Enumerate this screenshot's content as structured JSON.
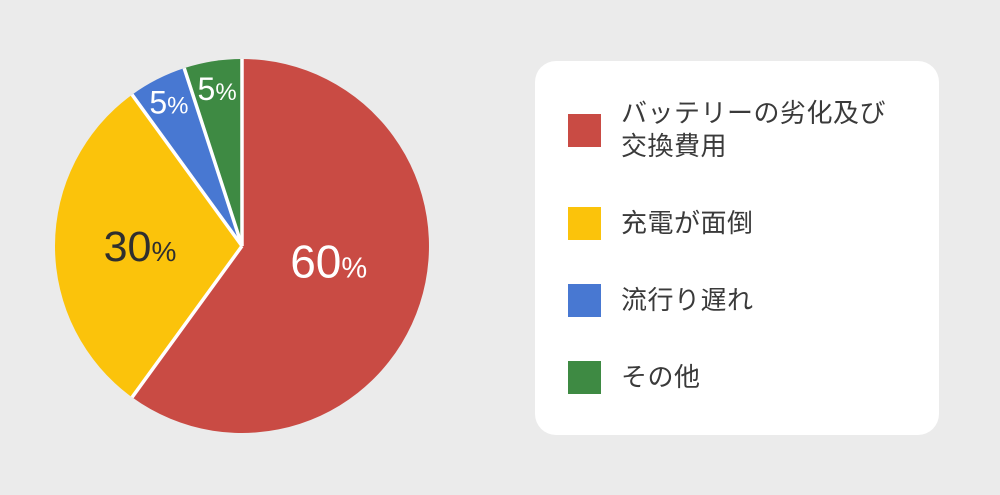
{
  "page": {
    "background_color": "#ebebeb",
    "card_color": "#ffffff"
  },
  "chart_data": {
    "type": "pie",
    "title": "",
    "unit": "%",
    "start_angle_deg": 0,
    "clockwise": true,
    "separator_color": "#ffffff",
    "legend_position": "right",
    "categories": [
      "バッテリーの劣化及び交換費用",
      "充電が面倒",
      "流行り遅れ",
      "その他"
    ],
    "values": [
      60,
      30,
      5,
      5
    ],
    "colors": [
      "#c94b44",
      "#fbc30b",
      "#4878d2",
      "#3e8a43"
    ],
    "slice_labels": [
      {
        "number": "60",
        "suffix": "%",
        "color": "#ffffff"
      },
      {
        "number": "30",
        "suffix": "%",
        "color": "#2f2f2f"
      },
      {
        "number": "5",
        "suffix": "%",
        "color": "#ffffff"
      },
      {
        "number": "5",
        "suffix": "%",
        "color": "#ffffff"
      }
    ]
  },
  "legend": {
    "items": [
      {
        "label": "バッテリーの劣化及び交換費用",
        "color": "#c94b44"
      },
      {
        "label": "充電が面倒",
        "color": "#fbc30b"
      },
      {
        "label": "流行り遅れ",
        "color": "#4878d2"
      },
      {
        "label": "その他",
        "color": "#3e8a43"
      }
    ]
  }
}
